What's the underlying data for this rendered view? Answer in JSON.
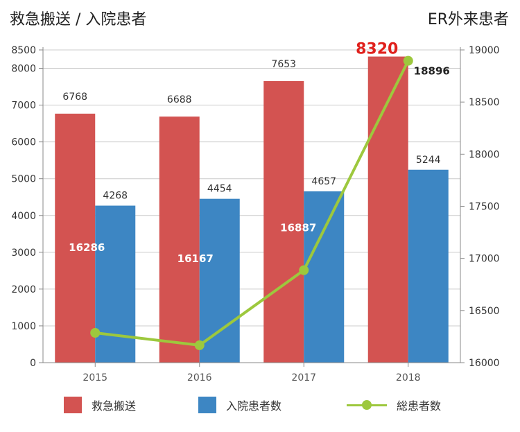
{
  "header": {
    "left_title": "救急搬送 / 入院患者",
    "right_title": "ER外来患者"
  },
  "colors": {
    "emergency": "#d35351",
    "inpatient": "#3d86c3",
    "total": "#9dc83d",
    "highlight_label": "#e0201c",
    "axis": "#888888",
    "grid": "#cccccc"
  },
  "chart_data": {
    "type": "bar+line",
    "categories": [
      "2015",
      "2016",
      "2017",
      "2018"
    ],
    "series": [
      {
        "name": "救急搬送",
        "type": "bar",
        "axis": "left",
        "values": [
          6768,
          6688,
          7653,
          8320
        ]
      },
      {
        "name": "入院患者数",
        "type": "bar",
        "axis": "left",
        "values": [
          4268,
          4454,
          4657,
          5244
        ]
      },
      {
        "name": "総患者数",
        "type": "line",
        "axis": "right",
        "values": [
          16286,
          16167,
          16887,
          18896
        ]
      }
    ],
    "left_axis": {
      "min": 0,
      "max": 8500,
      "ticks": [
        "0",
        "1000",
        "2000",
        "3000",
        "4000",
        "5000",
        "6000",
        "7000",
        "8000",
        "8500"
      ]
    },
    "right_axis": {
      "min": 16000,
      "max": 19000,
      "ticks": [
        "16000",
        "16500",
        "17000",
        "17500",
        "18000",
        "18500",
        "19000"
      ]
    },
    "highlight_value": "8320",
    "legend": [
      "救急搬送",
      "入院患者数",
      "総患者数"
    ],
    "legend_position": "bottom"
  }
}
